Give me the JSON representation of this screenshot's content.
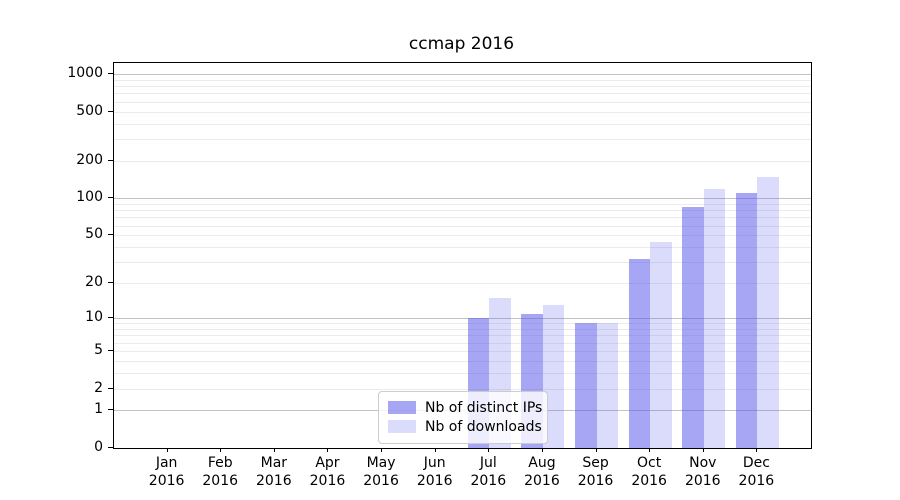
{
  "chart_data": {
    "type": "bar",
    "title": "ccmap 2016",
    "categories": [
      "Jan",
      "Feb",
      "Mar",
      "Apr",
      "May",
      "Jun",
      "Jul",
      "Aug",
      "Sep",
      "Oct",
      "Nov",
      "Dec"
    ],
    "x_year": "2016",
    "series": [
      {
        "name": "Nb of distinct IPs",
        "color": "rgba(85,85,235,0.52)",
        "values": [
          0,
          0,
          0,
          0,
          0,
          0,
          10,
          11,
          9,
          32,
          85,
          110
        ]
      },
      {
        "name": "Nb of downloads",
        "color": "rgba(85,85,235,0.21)",
        "values": [
          0,
          0,
          0,
          0,
          0,
          0,
          15,
          13,
          9,
          44,
          120,
          150
        ]
      }
    ],
    "yticks": [
      0,
      1,
      2,
      5,
      10,
      20,
      50,
      100,
      200,
      500,
      1000
    ],
    "ylim": [
      0,
      1230
    ],
    "scale": "symlog",
    "grid": {
      "major": [
        1,
        10,
        100,
        1000
      ],
      "minor_multipliers": [
        2,
        3,
        4,
        5,
        6,
        7,
        8,
        9
      ],
      "minor_decades": [
        1,
        10,
        100
      ]
    },
    "legend_position": "lower center"
  },
  "colors": {
    "major_grid": "#c3c3c3",
    "minor_grid": "#ebebeb",
    "axis": "#000000",
    "text": "#000000",
    "legend_border": "#cccccc",
    "legend_bg": "rgba(255,255,255,0.8)"
  }
}
